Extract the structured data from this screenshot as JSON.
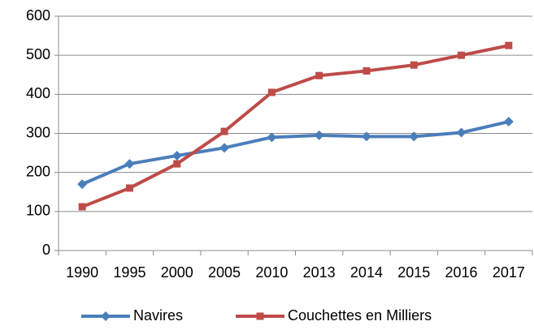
{
  "chart_data": {
    "type": "line",
    "categories": [
      "1990",
      "1995",
      "2000",
      "2005",
      "2010",
      "2013",
      "2014",
      "2015",
      "2016",
      "2017"
    ],
    "series": [
      {
        "name": "Navires",
        "color": "#4a7ebb",
        "marker": "diamond",
        "values": [
          170,
          222,
          243,
          263,
          290,
          295,
          292,
          292,
          302,
          330
        ]
      },
      {
        "name": "Couchettes en Milliers",
        "color": "#be4b48",
        "marker": "square",
        "values": [
          112,
          160,
          222,
          305,
          405,
          448,
          460,
          475,
          500,
          525
        ]
      }
    ],
    "ylim": [
      0,
      600
    ],
    "yticks": [
      0,
      100,
      200,
      300,
      400,
      500,
      600
    ],
    "grid": true,
    "legend": "bottom"
  }
}
